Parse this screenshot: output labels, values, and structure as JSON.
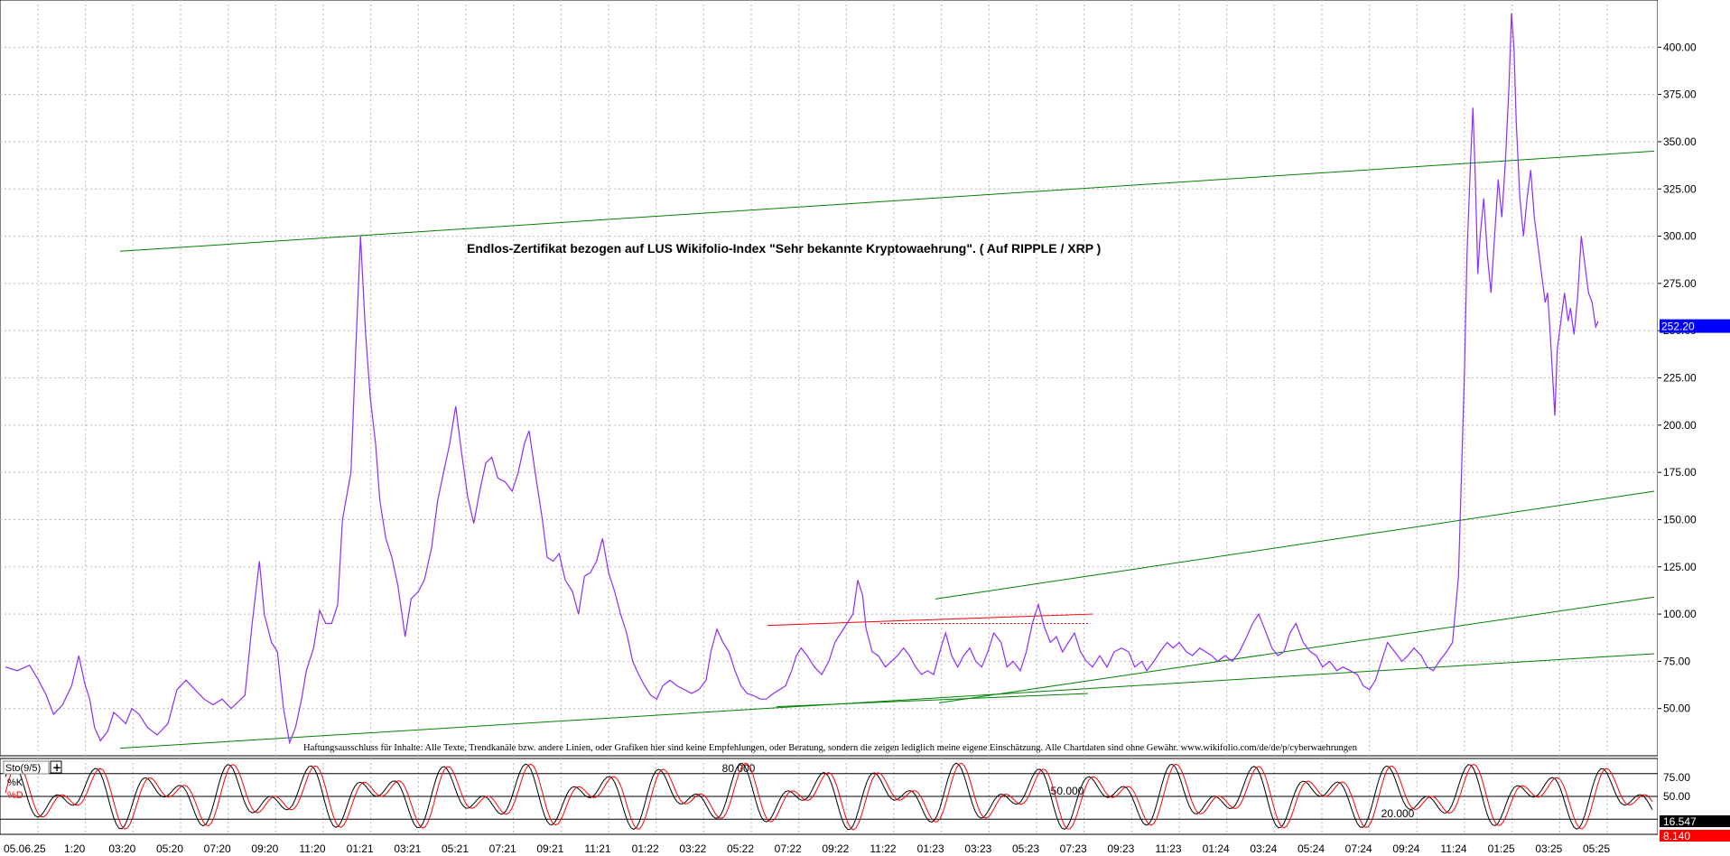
{
  "chart_data": {
    "type": "line",
    "title": "Endlos-Zertifikat bezogen auf LUS Wikifolio-Index \"Sehr bekannte Kryptowaehrung\". ( Auf RIPPLE / XRP )",
    "disclaimer": "Haftungsausschluss für Inhalte: Alle Texte, Trendkanäle bzw. andere Linien, oder Grafiken hier sind keine Empfehlungen, oder Beratung, sondern die zeigen lediglich meine eigene Einschätzung. Alle Chartdaten sind ohne Gewähr.  www.wikifolio.com/de/de/p/cyberwaehrungen",
    "ylim": [
      25,
      425
    ],
    "y_ticks": [
      "50.00",
      "75.00",
      "100.00",
      "125.00",
      "150.00",
      "175.00",
      "200.00",
      "225.00",
      "250.00",
      "275.00",
      "300.00",
      "325.00",
      "350.00",
      "375.00",
      "400.00"
    ],
    "x_ticks": [
      "05.06.25",
      "1:20",
      "03:20",
      "05:20",
      "07:20",
      "09:20",
      "11:20",
      "01:21",
      "03:21",
      "05:21",
      "07:21",
      "09:21",
      "11:21",
      "01:22",
      "03:22",
      "05:22",
      "07:22",
      "09:22",
      "11:22",
      "01:23",
      "03:23",
      "05:23",
      "07:23",
      "09:23",
      "11:23",
      "01:24",
      "03:24",
      "05:24",
      "07:24",
      "09:24",
      "11:24",
      "01:25",
      "03:25",
      "05:25"
    ],
    "last_value": "252.20",
    "last_value_color": "#0000ff",
    "series": [
      {
        "color": "#8c2cff",
        "points": [
          [
            0,
            72
          ],
          [
            20,
            70
          ],
          [
            40,
            73
          ],
          [
            55,
            65
          ],
          [
            68,
            57
          ],
          [
            80,
            47
          ],
          [
            95,
            52
          ],
          [
            110,
            62
          ],
          [
            122,
            78
          ],
          [
            132,
            63
          ],
          [
            140,
            55
          ],
          [
            148,
            40
          ],
          [
            158,
            33
          ],
          [
            170,
            38
          ],
          [
            180,
            48
          ],
          [
            190,
            45
          ],
          [
            200,
            42
          ],
          [
            210,
            50
          ],
          [
            222,
            47
          ],
          [
            236,
            40
          ],
          [
            252,
            36
          ],
          [
            270,
            42
          ],
          [
            285,
            60
          ],
          [
            300,
            65
          ],
          [
            315,
            60
          ],
          [
            330,
            55
          ],
          [
            345,
            52
          ],
          [
            360,
            55
          ],
          [
            375,
            50
          ],
          [
            388,
            54
          ],
          [
            398,
            57
          ],
          [
            410,
            95
          ],
          [
            422,
            128
          ],
          [
            430,
            100
          ],
          [
            442,
            85
          ],
          [
            452,
            80
          ],
          [
            462,
            50
          ],
          [
            472,
            32
          ],
          [
            482,
            40
          ],
          [
            492,
            55
          ],
          [
            500,
            70
          ],
          [
            512,
            82
          ],
          [
            522,
            102
          ],
          [
            532,
            95
          ],
          [
            542,
            95
          ],
          [
            552,
            105
          ],
          [
            560,
            150
          ],
          [
            574,
            175
          ],
          [
            582,
            240
          ],
          [
            590,
            300
          ],
          [
            598,
            250
          ],
          [
            606,
            215
          ],
          [
            615,
            190
          ],
          [
            622,
            160
          ],
          [
            632,
            140
          ],
          [
            642,
            130
          ],
          [
            652,
            115
          ],
          [
            664,
            88
          ],
          [
            674,
            108
          ],
          [
            686,
            112
          ],
          [
            696,
            118
          ],
          [
            708,
            135
          ],
          [
            718,
            160
          ],
          [
            728,
            175
          ],
          [
            738,
            190
          ],
          [
            748,
            210
          ],
          [
            758,
            185
          ],
          [
            768,
            162
          ],
          [
            778,
            148
          ],
          [
            788,
            165
          ],
          [
            798,
            180
          ],
          [
            808,
            183
          ],
          [
            818,
            172
          ],
          [
            830,
            170
          ],
          [
            842,
            165
          ],
          [
            852,
            175
          ],
          [
            862,
            190
          ],
          [
            870,
            197
          ],
          [
            880,
            175
          ],
          [
            892,
            150
          ],
          [
            900,
            130
          ],
          [
            910,
            128
          ],
          [
            920,
            132
          ],
          [
            930,
            118
          ],
          [
            942,
            112
          ],
          [
            952,
            100
          ],
          [
            962,
            120
          ],
          [
            972,
            122
          ],
          [
            982,
            128
          ],
          [
            992,
            140
          ],
          [
            1002,
            122
          ],
          [
            1012,
            112
          ],
          [
            1022,
            100
          ],
          [
            1032,
            90
          ],
          [
            1042,
            75
          ],
          [
            1052,
            68
          ],
          [
            1062,
            62
          ],
          [
            1072,
            57
          ],
          [
            1082,
            55
          ],
          [
            1092,
            62
          ],
          [
            1104,
            65
          ],
          [
            1116,
            62
          ],
          [
            1128,
            60
          ],
          [
            1140,
            58
          ],
          [
            1152,
            60
          ],
          [
            1164,
            65
          ],
          [
            1172,
            80
          ],
          [
            1182,
            92
          ],
          [
            1192,
            85
          ],
          [
            1202,
            80
          ],
          [
            1212,
            70
          ],
          [
            1222,
            62
          ],
          [
            1232,
            58
          ],
          [
            1242,
            57
          ],
          [
            1254,
            55
          ],
          [
            1264,
            55
          ],
          [
            1276,
            58
          ],
          [
            1286,
            60
          ],
          [
            1296,
            62
          ],
          [
            1306,
            70
          ],
          [
            1314,
            78
          ],
          [
            1322,
            82
          ],
          [
            1332,
            78
          ],
          [
            1344,
            72
          ],
          [
            1356,
            68
          ],
          [
            1368,
            75
          ],
          [
            1378,
            85
          ],
          [
            1388,
            90
          ],
          [
            1398,
            95
          ],
          [
            1408,
            100
          ],
          [
            1416,
            118
          ],
          [
            1424,
            110
          ],
          [
            1430,
            92
          ],
          [
            1440,
            80
          ],
          [
            1450,
            78
          ],
          [
            1462,
            72
          ],
          [
            1472,
            75
          ],
          [
            1482,
            78
          ],
          [
            1492,
            82
          ],
          [
            1502,
            78
          ],
          [
            1512,
            72
          ],
          [
            1522,
            68
          ],
          [
            1532,
            70
          ],
          [
            1542,
            68
          ],
          [
            1554,
            82
          ],
          [
            1562,
            90
          ],
          [
            1572,
            78
          ],
          [
            1582,
            72
          ],
          [
            1592,
            78
          ],
          [
            1602,
            82
          ],
          [
            1612,
            75
          ],
          [
            1622,
            72
          ],
          [
            1632,
            80
          ],
          [
            1642,
            90
          ],
          [
            1654,
            85
          ],
          [
            1664,
            72
          ],
          [
            1674,
            75
          ],
          [
            1686,
            70
          ],
          [
            1696,
            80
          ],
          [
            1706,
            95
          ],
          [
            1716,
            105
          ],
          [
            1726,
            93
          ],
          [
            1736,
            85
          ],
          [
            1746,
            88
          ],
          [
            1756,
            80
          ],
          [
            1766,
            85
          ],
          [
            1776,
            90
          ],
          [
            1786,
            80
          ],
          [
            1796,
            75
          ],
          [
            1806,
            72
          ],
          [
            1818,
            78
          ],
          [
            1830,
            72
          ],
          [
            1842,
            80
          ],
          [
            1854,
            82
          ],
          [
            1866,
            80
          ],
          [
            1876,
            72
          ],
          [
            1888,
            75
          ],
          [
            1896,
            70
          ],
          [
            1908,
            75
          ],
          [
            1918,
            80
          ],
          [
            1930,
            85
          ],
          [
            1940,
            82
          ],
          [
            1950,
            85
          ],
          [
            1962,
            80
          ],
          [
            1972,
            78
          ],
          [
            1984,
            82
          ],
          [
            1994,
            80
          ],
          [
            2004,
            78
          ],
          [
            2014,
            75
          ],
          [
            2026,
            78
          ],
          [
            2038,
            75
          ],
          [
            2050,
            80
          ],
          [
            2062,
            88
          ],
          [
            2072,
            95
          ],
          [
            2082,
            100
          ],
          [
            2092,
            92
          ],
          [
            2104,
            82
          ],
          [
            2114,
            78
          ],
          [
            2124,
            80
          ],
          [
            2134,
            90
          ],
          [
            2144,
            95
          ],
          [
            2156,
            85
          ],
          [
            2168,
            80
          ],
          [
            2178,
            78
          ],
          [
            2188,
            72
          ],
          [
            2200,
            75
          ],
          [
            2212,
            70
          ],
          [
            2222,
            72
          ],
          [
            2234,
            70
          ],
          [
            2246,
            68
          ],
          [
            2256,
            62
          ],
          [
            2266,
            60
          ],
          [
            2276,
            65
          ],
          [
            2286,
            75
          ],
          [
            2296,
            85
          ],
          [
            2308,
            80
          ],
          [
            2320,
            75
          ],
          [
            2330,
            78
          ],
          [
            2340,
            82
          ],
          [
            2352,
            78
          ],
          [
            2362,
            72
          ],
          [
            2372,
            70
          ],
          [
            2382,
            75
          ],
          [
            2394,
            80
          ],
          [
            2404,
            85
          ],
          [
            2414,
            120
          ],
          [
            2420,
            185
          ],
          [
            2424,
            230
          ],
          [
            2428,
            290
          ],
          [
            2434,
            340
          ],
          [
            2438,
            368
          ],
          [
            2442,
            330
          ],
          [
            2446,
            280
          ],
          [
            2450,
            300
          ],
          [
            2456,
            320
          ],
          [
            2462,
            290
          ],
          [
            2468,
            270
          ],
          [
            2474,
            300
          ],
          [
            2480,
            330
          ],
          [
            2486,
            310
          ],
          [
            2492,
            340
          ],
          [
            2498,
            380
          ],
          [
            2502,
            418
          ],
          [
            2506,
            400
          ],
          [
            2510,
            360
          ],
          [
            2516,
            320
          ],
          [
            2522,
            300
          ],
          [
            2528,
            320
          ],
          [
            2534,
            335
          ],
          [
            2540,
            310
          ],
          [
            2546,
            295
          ],
          [
            2552,
            280
          ],
          [
            2558,
            265
          ],
          [
            2562,
            270
          ],
          [
            2566,
            250
          ],
          [
            2570,
            228
          ],
          [
            2574,
            205
          ],
          [
            2578,
            240
          ],
          [
            2584,
            255
          ],
          [
            2590,
            270
          ],
          [
            2596,
            255
          ],
          [
            2600,
            262
          ],
          [
            2606,
            248
          ],
          [
            2612,
            268
          ],
          [
            2618,
            300
          ],
          [
            2624,
            285
          ],
          [
            2630,
            270
          ],
          [
            2636,
            265
          ],
          [
            2642,
            252
          ],
          [
            2646,
            255
          ]
        ]
      }
    ],
    "trend_lines_color": "#008000",
    "resistance_color": "#ff0000",
    "oscillator": {
      "name": "Sto(9/5)",
      "k_label": "%K",
      "d_label": "%D",
      "k_color": "#000000",
      "d_color": "#ff0000",
      "ylim": [
        0,
        100
      ],
      "y_ticks": [
        "75.00",
        "50.00"
      ],
      "level_labels": [
        "80.000",
        "50.000",
        "20.000"
      ],
      "k_value": "16.547",
      "d_value": "8.140"
    }
  }
}
